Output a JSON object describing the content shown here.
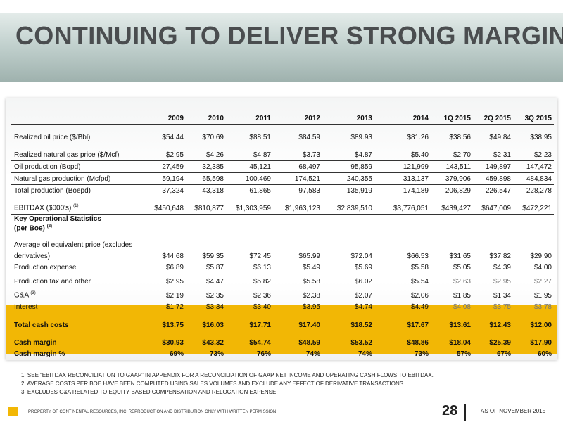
{
  "title": "CONTINUING TO DELIVER STRONG MARGINS",
  "columns": [
    "2009",
    "2010",
    "2011",
    "2012",
    "2013",
    "2014",
    "1Q 2015",
    "2Q 2015",
    "3Q 2015"
  ],
  "rows": {
    "oil_price": {
      "label": "Realized oil price ($/Bbl)",
      "values": [
        "$54.44",
        "$70.69",
        "$88.51",
        "$84.59",
        "$89.93",
        "$81.26",
        "$38.56",
        "$49.84",
        "$38.95"
      ]
    },
    "gas_price": {
      "label": "Realized natural gas price ($/Mcf)",
      "values": [
        "$2.95",
        "$4.26",
        "$4.87",
        "$3.73",
        "$4.87",
        "$5.40",
        "$2.70",
        "$2.31",
        "$2.23"
      ]
    },
    "oil_prod": {
      "label": "Oil production (Bopd)",
      "values": [
        "27,459",
        "32,385",
        "45,121",
        "68,497",
        "95,859",
        "121,999",
        "143,511",
        "149,897",
        "147,472"
      ]
    },
    "gas_prod": {
      "label": "Natural gas production (Mcfpd)",
      "values": [
        "59,194",
        "65,598",
        "100,469",
        "174,521",
        "240,355",
        "313,137",
        "379,906",
        "459,898",
        "484,834"
      ]
    },
    "total_prod": {
      "label": "Total production (Boepd)",
      "values": [
        "37,324",
        "43,318",
        "61,865",
        "97,583",
        "135,919",
        "174,189",
        "206,829",
        "226,547",
        "228,278"
      ]
    },
    "ebitdax": {
      "label": "EBITDAX ($000's)",
      "sup": "(1)",
      "values": [
        "$450,648",
        "$810,877",
        "$1,303,959",
        "$1,963,123",
        "$2,839,510",
        "$3,776,051",
        "$439,427",
        "$647,009",
        "$472,221"
      ]
    },
    "key_stats_1": "Key Operational Statistics",
    "key_stats_2": "(per Boe)",
    "key_stats_sup": "(2)",
    "avg_price": {
      "label1": "Average oil equivalent price (excludes",
      "label2": "derivatives)",
      "values": [
        "$44.68",
        "$59.35",
        "$72.45",
        "$65.99",
        "$72.04",
        "$66.53",
        "$31.65",
        "$37.82",
        "$29.90"
      ]
    },
    "prod_exp": {
      "label": "Production expense",
      "values": [
        "$6.89",
        "$5.87",
        "$6.13",
        "$5.49",
        "$5.69",
        "$5.58",
        "$5.05",
        "$4.39",
        "$4.00"
      ]
    },
    "prod_tax": {
      "label": "Production tax and other",
      "values": [
        "$2.95",
        "$4.47",
        "$5.82",
        "$5.58",
        "$6.02",
        "$5.54",
        "$2.63",
        "$2.95",
        "$2.27"
      ]
    },
    "ga": {
      "label": "G&A",
      "sup": "(3)",
      "values": [
        "$2.19",
        "$2.35",
        "$2.36",
        "$2.38",
        "$2.07",
        "$2.06",
        "$1.85",
        "$1.34",
        "$1.95"
      ]
    },
    "interest": {
      "label": "Interest",
      "values": [
        "$1.72",
        "$3.34",
        "$3.40",
        "$3.95",
        "$4.74",
        "$4.49",
        "$4.08",
        "$3.75",
        "$3.78"
      ]
    },
    "total_cash": {
      "label": "Total cash costs",
      "values": [
        "$13.75",
        "$16.03",
        "$17.71",
        "$17.40",
        "$18.52",
        "$17.67",
        "$13.61",
        "$12.43",
        "$12.00"
      ]
    },
    "cash_margin": {
      "label": "Cash margin",
      "values": [
        "$30.93",
        "$43.32",
        "$54.74",
        "$48.59",
        "$53.52",
        "$48.86",
        "$18.04",
        "$25.39",
        "$17.90"
      ]
    },
    "cash_margin_pct": {
      "label": "Cash margin %",
      "values": [
        "69%",
        "73%",
        "76%",
        "74%",
        "74%",
        "73%",
        "57%",
        "67%",
        "60%"
      ]
    }
  },
  "notes": [
    "1.  SEE “EBITDAX RECONCILIATION TO GAAP” IN APPENDIX  FOR A RECONCILIATION OF GAAP NET INCOME AND OPERATING CASH FLOWS TO EBITDAX.",
    "2. AVERAGE COSTS PER BOE HAVE BEEN COMPUTED USING SALES VOLUMES AND EXCLUDE ANY EFFECT OF DERIVATIVE TRANSACTIONS.",
    "3. EXCLUDES G&A RELATED TO EQUITY BASED COMPENSATION AND RELOCATION EXPENSE."
  ],
  "footer": {
    "property": "PROPERTY OF CONTINENTAL RESOURCES, INC. REPRODUCTION AND DISTRIBUTION ONLY WITH WRITTEN PERMISSION",
    "page": "28",
    "as_of": "AS OF NOVEMBER 2015"
  }
}
